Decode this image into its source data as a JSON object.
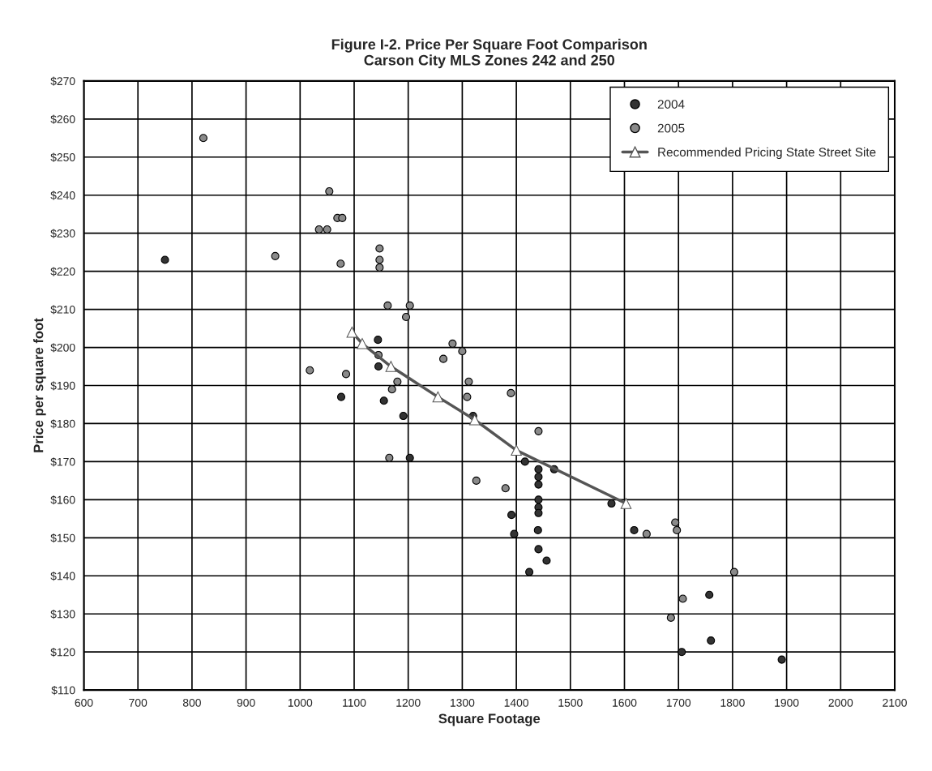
{
  "chart_data": {
    "type": "scatter",
    "title": "Figure I-2. Price Per Square Foot Comparison\nCarson City MLS Zones 242 and 250",
    "xlabel": "Square Footage",
    "ylabel": "Price per square foot",
    "xlim": [
      600,
      2100
    ],
    "xticks": [
      600,
      700,
      800,
      900,
      1000,
      1100,
      1200,
      1300,
      1400,
      1500,
      1600,
      1700,
      1800,
      1900,
      2000,
      2100
    ],
    "ylim": [
      110,
      270
    ],
    "yticks": [
      {
        "value": 110,
        "label": "$110"
      },
      {
        "value": 120,
        "label": "$120"
      },
      {
        "value": 130,
        "label": "$130"
      },
      {
        "value": 140,
        "label": "$140"
      },
      {
        "value": 150,
        "label": "$150"
      },
      {
        "value": 160,
        "label": "$160"
      },
      {
        "value": 170,
        "label": "$170"
      },
      {
        "value": 180,
        "label": "$180"
      },
      {
        "value": 190,
        "label": "$190"
      },
      {
        "value": 200,
        "label": "$200"
      },
      {
        "value": 210,
        "label": "$210"
      },
      {
        "value": 220,
        "label": "$220"
      },
      {
        "value": 230,
        "label": "$230"
      },
      {
        "value": 240,
        "label": "$240"
      },
      {
        "value": 250,
        "label": "$250"
      },
      {
        "value": 260,
        "label": "$260"
      },
      {
        "value": 270,
        "label": "$270"
      }
    ],
    "grid": true,
    "legend": "top right",
    "marker": "circle",
    "series": [
      {
        "name": "2004",
        "color": "#333333",
        "x": [
          750,
          1144,
          1145,
          1076,
          1155,
          1191,
          1203,
          1320,
          1416,
          1441,
          1441,
          1441,
          1470,
          1576,
          1441,
          1441,
          1441,
          1440,
          1441,
          1456,
          1618,
          1757,
          1760,
          1891,
          1396,
          1391,
          1424,
          1706
        ],
        "values": [
          223,
          202,
          195,
          187,
          186,
          182,
          171,
          182,
          170,
          168,
          166,
          164,
          168,
          159,
          160,
          158,
          156.5,
          152,
          147,
          144,
          152,
          135,
          123,
          118,
          151,
          156,
          141,
          120
        ]
      },
      {
        "name": "2005",
        "color": "#8a8a8a",
        "x": [
          821,
          954,
          1054,
          1069,
          1078,
          1050,
          1035,
          1075,
          1147,
          1147,
          1147,
          1162,
          1203,
          1196,
          1145,
          1282,
          1300,
          1265,
          1018,
          1085,
          1170,
          1180,
          1165,
          1312,
          1309,
          1326,
          1390,
          1441,
          1380,
          1641,
          1694,
          1697,
          1803,
          1708,
          1686
        ],
        "values": [
          255,
          224,
          241,
          234,
          234,
          231,
          231,
          222,
          226,
          223,
          221,
          211,
          211,
          208,
          198,
          201,
          199,
          197,
          194,
          193,
          189,
          191,
          171,
          191,
          187,
          165,
          188,
          178,
          163,
          151,
          154,
          152,
          141,
          134,
          129
        ]
      },
      {
        "name": "Recommended Pricing State Street Site",
        "type": "line",
        "marker": "triangle",
        "color": "#555555",
        "x": [
          1096,
          1115,
          1168,
          1255,
          1323,
          1400,
          1603
        ],
        "values": [
          204,
          201,
          195,
          187,
          181,
          173,
          159
        ]
      }
    ]
  }
}
